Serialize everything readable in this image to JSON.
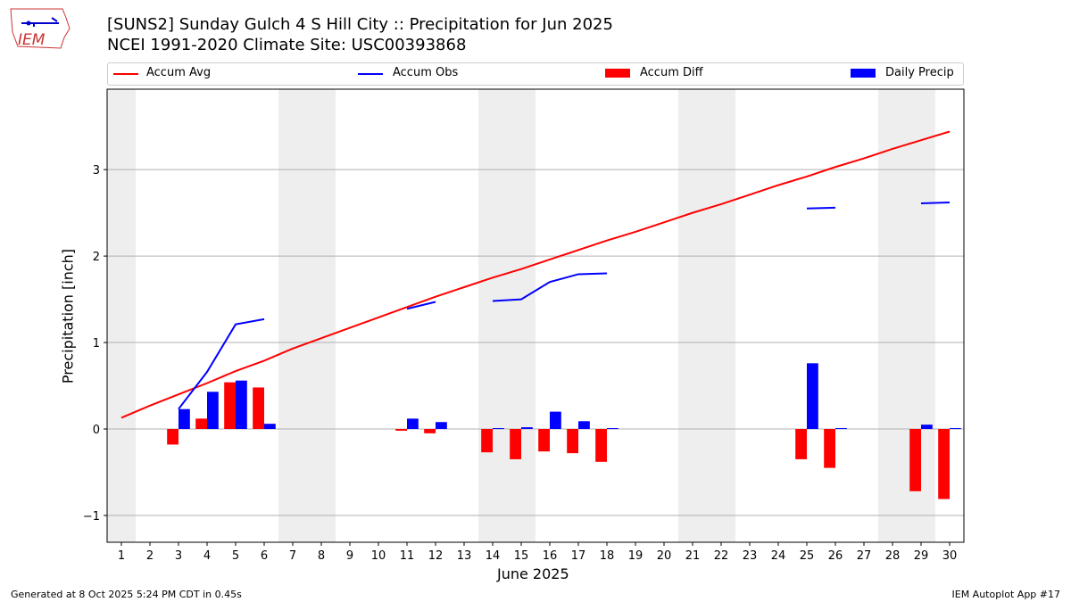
{
  "logo": {
    "text": "IEM"
  },
  "footer": {
    "left": "Generated at 8 Oct 2025 5:24 PM CDT in 0.45s",
    "right": "IEM Autoplot App #17"
  },
  "chart_data": {
    "type": "bar",
    "title": "[SUNS2] Sunday Gulch 4 S Hill City :: Precipitation for Jun 2025",
    "subtitle": "NCEI 1991-2020 Climate Site: USC00393868",
    "xlabel": "June 2025",
    "ylabel": "Precipitation [inch]",
    "xlim": [
      0.5,
      30.5
    ],
    "ylim": [
      -1.31,
      3.93
    ],
    "yticks": [
      -1,
      0,
      1,
      2,
      3
    ],
    "ytick_labels": [
      "−1",
      "0",
      "1",
      "2",
      "3"
    ],
    "x": [
      1,
      2,
      3,
      4,
      5,
      6,
      7,
      8,
      9,
      10,
      11,
      12,
      13,
      14,
      15,
      16,
      17,
      18,
      19,
      20,
      21,
      22,
      23,
      24,
      25,
      26,
      27,
      28,
      29,
      30
    ],
    "weekend_days": [
      1,
      7,
      8,
      14,
      15,
      21,
      22,
      28,
      29
    ],
    "grid": "y",
    "legend_placement": "top",
    "legend": [
      "Accum Avg",
      "Accum Obs",
      "Accum Diff",
      "Daily Precip"
    ],
    "colors": {
      "avg": "#ff0000",
      "obs": "#0000ff",
      "diff": "#ff0000",
      "precip": "#0000ff",
      "weekend": "#eeeeee"
    },
    "series": [
      {
        "name": "Accum Avg",
        "type": "line",
        "values": [
          0.13,
          0.27,
          0.4,
          0.53,
          0.67,
          0.79,
          0.93,
          1.05,
          1.17,
          1.29,
          1.41,
          1.53,
          1.64,
          1.75,
          1.85,
          1.96,
          2.07,
          2.18,
          2.28,
          2.39,
          2.5,
          2.6,
          2.71,
          2.82,
          2.92,
          3.03,
          3.13,
          3.24,
          3.34,
          3.44
        ]
      },
      {
        "name": "Accum Obs",
        "type": "line",
        "values": [
          null,
          null,
          0.23,
          0.66,
          1.21,
          1.27,
          null,
          null,
          null,
          null,
          1.39,
          1.47,
          null,
          1.48,
          1.5,
          1.7,
          1.79,
          1.8,
          null,
          null,
          null,
          null,
          null,
          null,
          2.55,
          2.56,
          null,
          null,
          2.61,
          2.62
        ]
      },
      {
        "name": "Accum Diff",
        "type": "bar",
        "values": [
          null,
          null,
          -0.18,
          0.12,
          0.54,
          0.48,
          null,
          null,
          null,
          null,
          -0.02,
          -0.05,
          null,
          -0.27,
          -0.35,
          -0.26,
          -0.28,
          -0.38,
          null,
          null,
          null,
          null,
          null,
          null,
          -0.35,
          -0.45,
          null,
          null,
          -0.72,
          -0.81
        ]
      },
      {
        "name": "Daily Precip",
        "type": "bar",
        "values": [
          null,
          null,
          0.23,
          0.43,
          0.56,
          0.06,
          null,
          null,
          null,
          null,
          0.12,
          0.08,
          null,
          0.01,
          0.02,
          0.2,
          0.09,
          0.01,
          null,
          null,
          null,
          null,
          null,
          null,
          0.76,
          0.01,
          null,
          null,
          0.05,
          0.01
        ]
      }
    ]
  }
}
